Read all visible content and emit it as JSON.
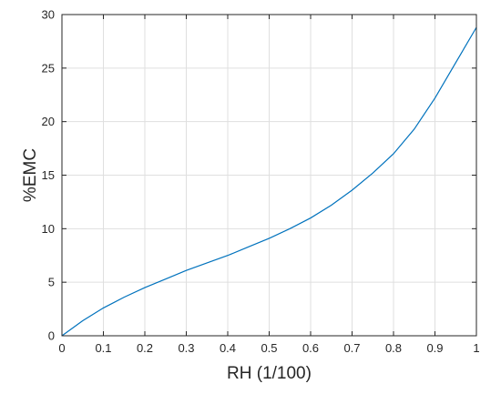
{
  "chart_data": {
    "type": "line",
    "title": "",
    "xlabel": "RH (1/100)",
    "ylabel": "%EMC",
    "xlim": [
      0,
      1
    ],
    "ylim": [
      0,
      30
    ],
    "xticks": [
      0,
      0.1,
      0.2,
      0.3,
      0.4,
      0.5,
      0.6,
      0.7,
      0.8,
      0.9,
      1
    ],
    "xtick_labels": [
      "0",
      "0.1",
      "0.2",
      "0.3",
      "0.4",
      "0.5",
      "0.6",
      "0.7",
      "0.8",
      "0.9",
      "1"
    ],
    "yticks": [
      0,
      5,
      10,
      15,
      20,
      25,
      30
    ],
    "ytick_labels": [
      "0",
      "5",
      "10",
      "15",
      "20",
      "25",
      "30"
    ],
    "grid": true,
    "legend": "none",
    "series": [
      {
        "color": "#0072bd",
        "x": [
          0,
          0.05,
          0.1,
          0.15,
          0.2,
          0.25,
          0.3,
          0.35,
          0.4,
          0.45,
          0.5,
          0.55,
          0.6,
          0.65,
          0.7,
          0.75,
          0.8,
          0.85,
          0.9,
          0.95,
          1.0
        ],
        "y": [
          0,
          1.4,
          2.6,
          3.6,
          4.5,
          5.3,
          6.1,
          6.8,
          7.5,
          8.3,
          9.1,
          10.0,
          11.0,
          12.2,
          13.6,
          15.2,
          17.0,
          19.3,
          22.2,
          25.5,
          28.8
        ]
      }
    ]
  }
}
